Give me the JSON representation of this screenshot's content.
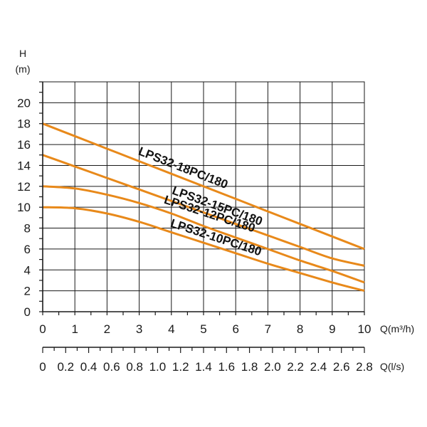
{
  "chart_data": {
    "type": "line",
    "title": "",
    "ylabel": "H",
    "ylabel_unit": "(m)",
    "xlabel": "Q(m³/h)",
    "xlabel_secondary": "Q(l/s)",
    "xlim": [
      0,
      10
    ],
    "ylim": [
      0,
      22
    ],
    "x_ticks": [
      "0",
      "1",
      "2",
      "3",
      "4",
      "5",
      "6",
      "7",
      "8",
      "9",
      "10"
    ],
    "y_ticks": [
      "0",
      "2",
      "4",
      "6",
      "8",
      "10",
      "12",
      "14",
      "16",
      "18",
      "20"
    ],
    "x2_ticks": [
      "0",
      "0.2",
      "0.4",
      "0.6",
      "0.8",
      "1.0",
      "1.2",
      "1.4",
      "1.6",
      "1.8",
      "2.0",
      "2.2",
      "2.4",
      "2.6",
      "2.8"
    ],
    "x2_range_ls": [
      0,
      2.8
    ],
    "grid": true,
    "series": [
      {
        "name": "LPS32-18PC/180",
        "x": [
          0,
          1,
          2,
          3,
          4,
          5,
          6,
          7,
          8,
          9,
          10
        ],
        "y": [
          18,
          16.8,
          15.6,
          14.4,
          13.2,
          12.0,
          10.8,
          9.6,
          8.4,
          7.2,
          6.0
        ]
      },
      {
        "name": "LPS32-15PC/180",
        "x": [
          0,
          1,
          2,
          3,
          4,
          5,
          6,
          7,
          8,
          9,
          10
        ],
        "y": [
          15,
          13.9,
          12.8,
          11.7,
          10.6,
          9.5,
          8.4,
          7.3,
          6.2,
          5.1,
          4.4
        ]
      },
      {
        "name": "LPS32-12PC/180",
        "x": [
          0,
          1,
          2,
          3,
          4,
          5,
          6,
          7,
          8,
          9,
          10
        ],
        "y": [
          12,
          11.8,
          11.2,
          10.4,
          9.4,
          8.2,
          7.1,
          6.0,
          4.9,
          3.9,
          2.8
        ]
      },
      {
        "name": "LPS32-10PC/180",
        "x": [
          0,
          1,
          2,
          3,
          4,
          5,
          6,
          7,
          8,
          9,
          10
        ],
        "y": [
          10,
          9.9,
          9.4,
          8.6,
          7.6,
          6.6,
          5.6,
          4.6,
          3.7,
          2.8,
          2.0
        ]
      }
    ],
    "curve_color": "#e8891a"
  }
}
